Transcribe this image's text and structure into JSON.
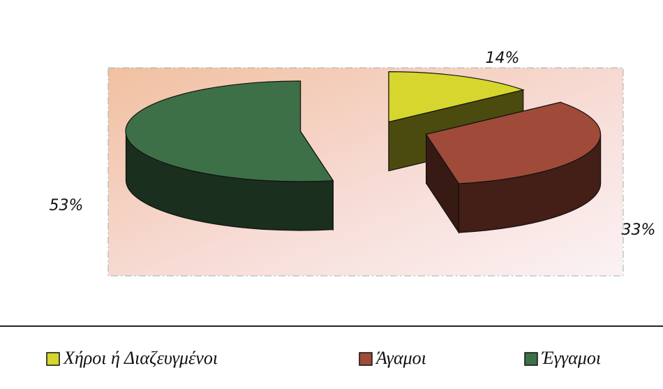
{
  "chart_data": {
    "type": "pie3d",
    "categories": [
      "Χήροι ή Διαζευγμένοι",
      "Άγαμοι",
      "Έγγαμοι"
    ],
    "values": [
      14,
      33,
      53
    ],
    "value_labels": [
      "14%",
      "33%",
      "53%"
    ],
    "colors": [
      "#d6d62e",
      "#a04a3a",
      "#3e7048"
    ],
    "legend": "bottom"
  }
}
